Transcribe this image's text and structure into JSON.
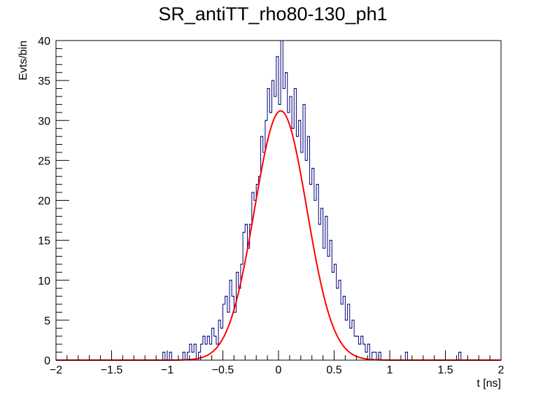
{
  "chart_data": {
    "type": "line",
    "title": "SR_antiTT_rho80-130_ph1",
    "xlabel": "t [ns]",
    "ylabel": "Evts/bin",
    "xlim": [
      -2,
      2
    ],
    "ylim": [
      0,
      40
    ],
    "x_ticks": [
      "−2",
      "−1.5",
      "−1",
      "−0.5",
      "0",
      "0.5",
      "1",
      "1.5",
      "2"
    ],
    "y_ticks": [
      "0",
      "5",
      "10",
      "15",
      "20",
      "25",
      "30",
      "35",
      "40"
    ],
    "grid": false,
    "legend": "none",
    "series": [
      {
        "kind": "histogram",
        "color": "#00007f",
        "bin_width": 0.02,
        "bins": [
          {
            "x": -1.03,
            "y": 1
          },
          {
            "x": -0.97,
            "y": 1
          },
          {
            "x": -0.85,
            "y": 1
          },
          {
            "x": -0.81,
            "y": 1
          },
          {
            "x": -0.79,
            "y": 2
          },
          {
            "x": -0.77,
            "y": 1
          },
          {
            "x": -0.75,
            "y": 2
          },
          {
            "x": -0.71,
            "y": 1
          },
          {
            "x": -0.69,
            "y": 2
          },
          {
            "x": -0.67,
            "y": 3
          },
          {
            "x": -0.65,
            "y": 2
          },
          {
            "x": -0.63,
            "y": 3
          },
          {
            "x": -0.61,
            "y": 2
          },
          {
            "x": -0.59,
            "y": 4
          },
          {
            "x": -0.57,
            "y": 3
          },
          {
            "x": -0.55,
            "y": 2
          },
          {
            "x": -0.53,
            "y": 5
          },
          {
            "x": -0.51,
            "y": 4
          },
          {
            "x": -0.49,
            "y": 7
          },
          {
            "x": -0.47,
            "y": 8
          },
          {
            "x": -0.45,
            "y": 6
          },
          {
            "x": -0.43,
            "y": 10
          },
          {
            "x": -0.41,
            "y": 8
          },
          {
            "x": -0.39,
            "y": 6
          },
          {
            "x": -0.37,
            "y": 11
          },
          {
            "x": -0.35,
            "y": 9
          },
          {
            "x": -0.33,
            "y": 12
          },
          {
            "x": -0.31,
            "y": 16
          },
          {
            "x": -0.29,
            "y": 17
          },
          {
            "x": -0.27,
            "y": 14
          },
          {
            "x": -0.25,
            "y": 17
          },
          {
            "x": -0.23,
            "y": 21
          },
          {
            "x": -0.21,
            "y": 20
          },
          {
            "x": -0.19,
            "y": 22
          },
          {
            "x": -0.17,
            "y": 23
          },
          {
            "x": -0.15,
            "y": 28
          },
          {
            "x": -0.13,
            "y": 26
          },
          {
            "x": -0.11,
            "y": 30
          },
          {
            "x": -0.09,
            "y": 34
          },
          {
            "x": -0.07,
            "y": 31
          },
          {
            "x": -0.05,
            "y": 35
          },
          {
            "x": -0.03,
            "y": 33
          },
          {
            "x": -0.01,
            "y": 38
          },
          {
            "x": 0.01,
            "y": 32
          },
          {
            "x": 0.03,
            "y": 40
          },
          {
            "x": 0.05,
            "y": 34
          },
          {
            "x": 0.07,
            "y": 36
          },
          {
            "x": 0.09,
            "y": 31
          },
          {
            "x": 0.11,
            "y": 33
          },
          {
            "x": 0.13,
            "y": 29
          },
          {
            "x": 0.15,
            "y": 34
          },
          {
            "x": 0.17,
            "y": 28
          },
          {
            "x": 0.19,
            "y": 30
          },
          {
            "x": 0.21,
            "y": 26
          },
          {
            "x": 0.23,
            "y": 32
          },
          {
            "x": 0.25,
            "y": 25
          },
          {
            "x": 0.27,
            "y": 28
          },
          {
            "x": 0.29,
            "y": 22
          },
          {
            "x": 0.31,
            "y": 24
          },
          {
            "x": 0.33,
            "y": 20
          },
          {
            "x": 0.35,
            "y": 22
          },
          {
            "x": 0.37,
            "y": 17
          },
          {
            "x": 0.39,
            "y": 19
          },
          {
            "x": 0.41,
            "y": 14
          },
          {
            "x": 0.43,
            "y": 18
          },
          {
            "x": 0.45,
            "y": 13
          },
          {
            "x": 0.47,
            "y": 15
          },
          {
            "x": 0.49,
            "y": 11
          },
          {
            "x": 0.51,
            "y": 12
          },
          {
            "x": 0.53,
            "y": 9
          },
          {
            "x": 0.55,
            "y": 10
          },
          {
            "x": 0.57,
            "y": 7
          },
          {
            "x": 0.59,
            "y": 8
          },
          {
            "x": 0.61,
            "y": 5
          },
          {
            "x": 0.63,
            "y": 7
          },
          {
            "x": 0.65,
            "y": 4
          },
          {
            "x": 0.67,
            "y": 5
          },
          {
            "x": 0.69,
            "y": 3
          },
          {
            "x": 0.71,
            "y": 3
          },
          {
            "x": 0.73,
            "y": 2
          },
          {
            "x": 0.75,
            "y": 3
          },
          {
            "x": 0.77,
            "y": 2
          },
          {
            "x": 0.79,
            "y": 1
          },
          {
            "x": 0.81,
            "y": 2
          },
          {
            "x": 0.85,
            "y": 1
          },
          {
            "x": 0.87,
            "y": 1
          },
          {
            "x": 0.91,
            "y": 1
          },
          {
            "x": 1.15,
            "y": 1
          },
          {
            "x": 1.63,
            "y": 1
          }
        ]
      },
      {
        "kind": "fit",
        "color": "#ff0000",
        "model": "gaussian",
        "amplitude": 31.2,
        "mean": 0.02,
        "sigma": 0.235
      }
    ]
  }
}
